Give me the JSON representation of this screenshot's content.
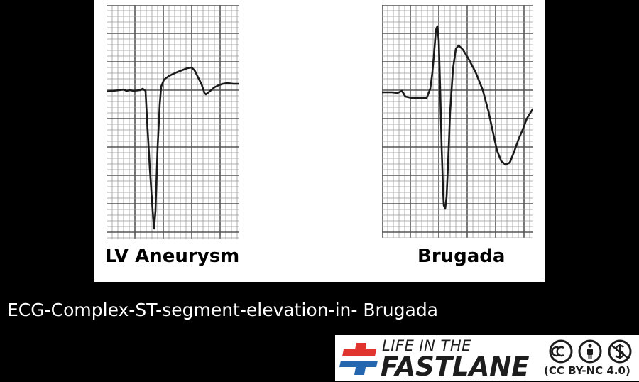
{
  "panels": [
    {
      "label": "LV Aneurysm"
    },
    {
      "label": "Brugada"
    }
  ],
  "caption": "ECG-Complex-ST-segment-elevation-in- Brugada",
  "logo": {
    "line1": "LIFE IN THE",
    "line2": "FASTLANE",
    "license": "(CC BY-NC 4.0)",
    "icons": [
      "cc-icon",
      "by-person-icon",
      "nc-dollar-icon"
    ]
  },
  "colors": {
    "background": "#000000",
    "panel": "#ffffff",
    "grid_minor": "#9a9a9a",
    "grid_major": "#555555",
    "trace": "#1a1a1a",
    "logo_red": "#e2342f",
    "logo_blue": "#2467b0"
  }
}
